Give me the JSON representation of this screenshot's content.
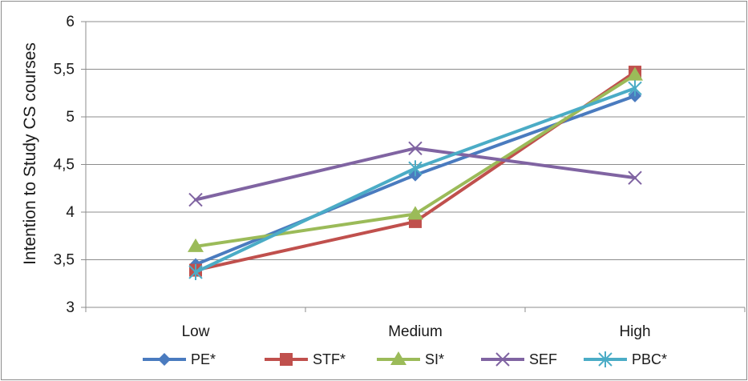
{
  "chart_data": {
    "type": "line",
    "title": "",
    "xlabel": "",
    "ylabel": "Intention to Study CS courses",
    "categories": [
      "Low",
      "Medium",
      "High"
    ],
    "ylim": [
      3,
      6
    ],
    "yticks": [
      3,
      3.5,
      4,
      4.5,
      5,
      5.5,
      6
    ],
    "ytick_labels": [
      "3",
      "3,5",
      "4",
      "4,5",
      "5",
      "5,5",
      "6"
    ],
    "grid": "horizontal",
    "legend": "bottom",
    "series": [
      {
        "name": "PE*",
        "values": [
          3.45,
          4.39,
          5.22
        ],
        "color": "#4a7bbf",
        "marker": "diamond"
      },
      {
        "name": "STF*",
        "values": [
          3.39,
          3.9,
          5.47
        ],
        "color": "#c0504d",
        "marker": "square"
      },
      {
        "name": "SI*",
        "values": [
          3.64,
          3.98,
          5.44
        ],
        "color": "#9bbb59",
        "marker": "triangle"
      },
      {
        "name": "SEF",
        "values": [
          4.13,
          4.67,
          4.36
        ],
        "color": "#8064a2",
        "marker": "x"
      },
      {
        "name": "PBC*",
        "values": [
          3.37,
          4.46,
          5.3
        ],
        "color": "#4bacc6",
        "marker": "star"
      }
    ]
  }
}
